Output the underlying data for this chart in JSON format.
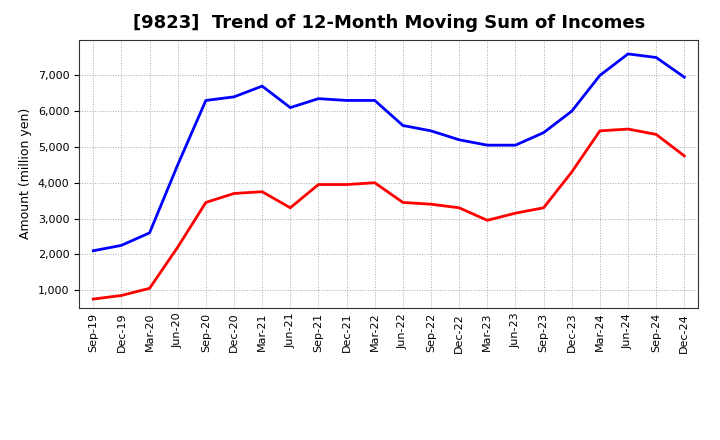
{
  "title": "[9823]  Trend of 12-Month Moving Sum of Incomes",
  "ylabel": "Amount (million yen)",
  "x_labels": [
    "Sep-19",
    "Dec-19",
    "Mar-20",
    "Jun-20",
    "Sep-20",
    "Dec-20",
    "Mar-21",
    "Jun-21",
    "Sep-21",
    "Dec-21",
    "Mar-22",
    "Jun-22",
    "Sep-22",
    "Dec-22",
    "Mar-23",
    "Jun-23",
    "Sep-23",
    "Dec-23",
    "Mar-24",
    "Jun-24",
    "Sep-24",
    "Dec-24"
  ],
  "ordinary_income": [
    2100,
    2250,
    2600,
    4500,
    6300,
    6400,
    6700,
    6100,
    6350,
    6300,
    6300,
    5600,
    5450,
    5200,
    5050,
    5050,
    5400,
    6000,
    7000,
    7600,
    7500,
    6950
  ],
  "net_income": [
    750,
    850,
    1050,
    2200,
    3450,
    3700,
    3750,
    3300,
    3950,
    3950,
    4000,
    3450,
    3400,
    3300,
    2950,
    3150,
    3300,
    4300,
    5450,
    5500,
    5350,
    4750
  ],
  "ordinary_color": "#0000ff",
  "net_color": "#ff0000",
  "ylim_min": 500,
  "ylim_max": 8000,
  "yticks": [
    1000,
    2000,
    3000,
    4000,
    5000,
    6000,
    7000
  ],
  "background_color": "#ffffff",
  "grid_color": "#aaaaaa",
  "line_width": 2.0,
  "title_fontsize": 13,
  "ylabel_fontsize": 9,
  "tick_fontsize": 8,
  "legend_fontsize": 10
}
